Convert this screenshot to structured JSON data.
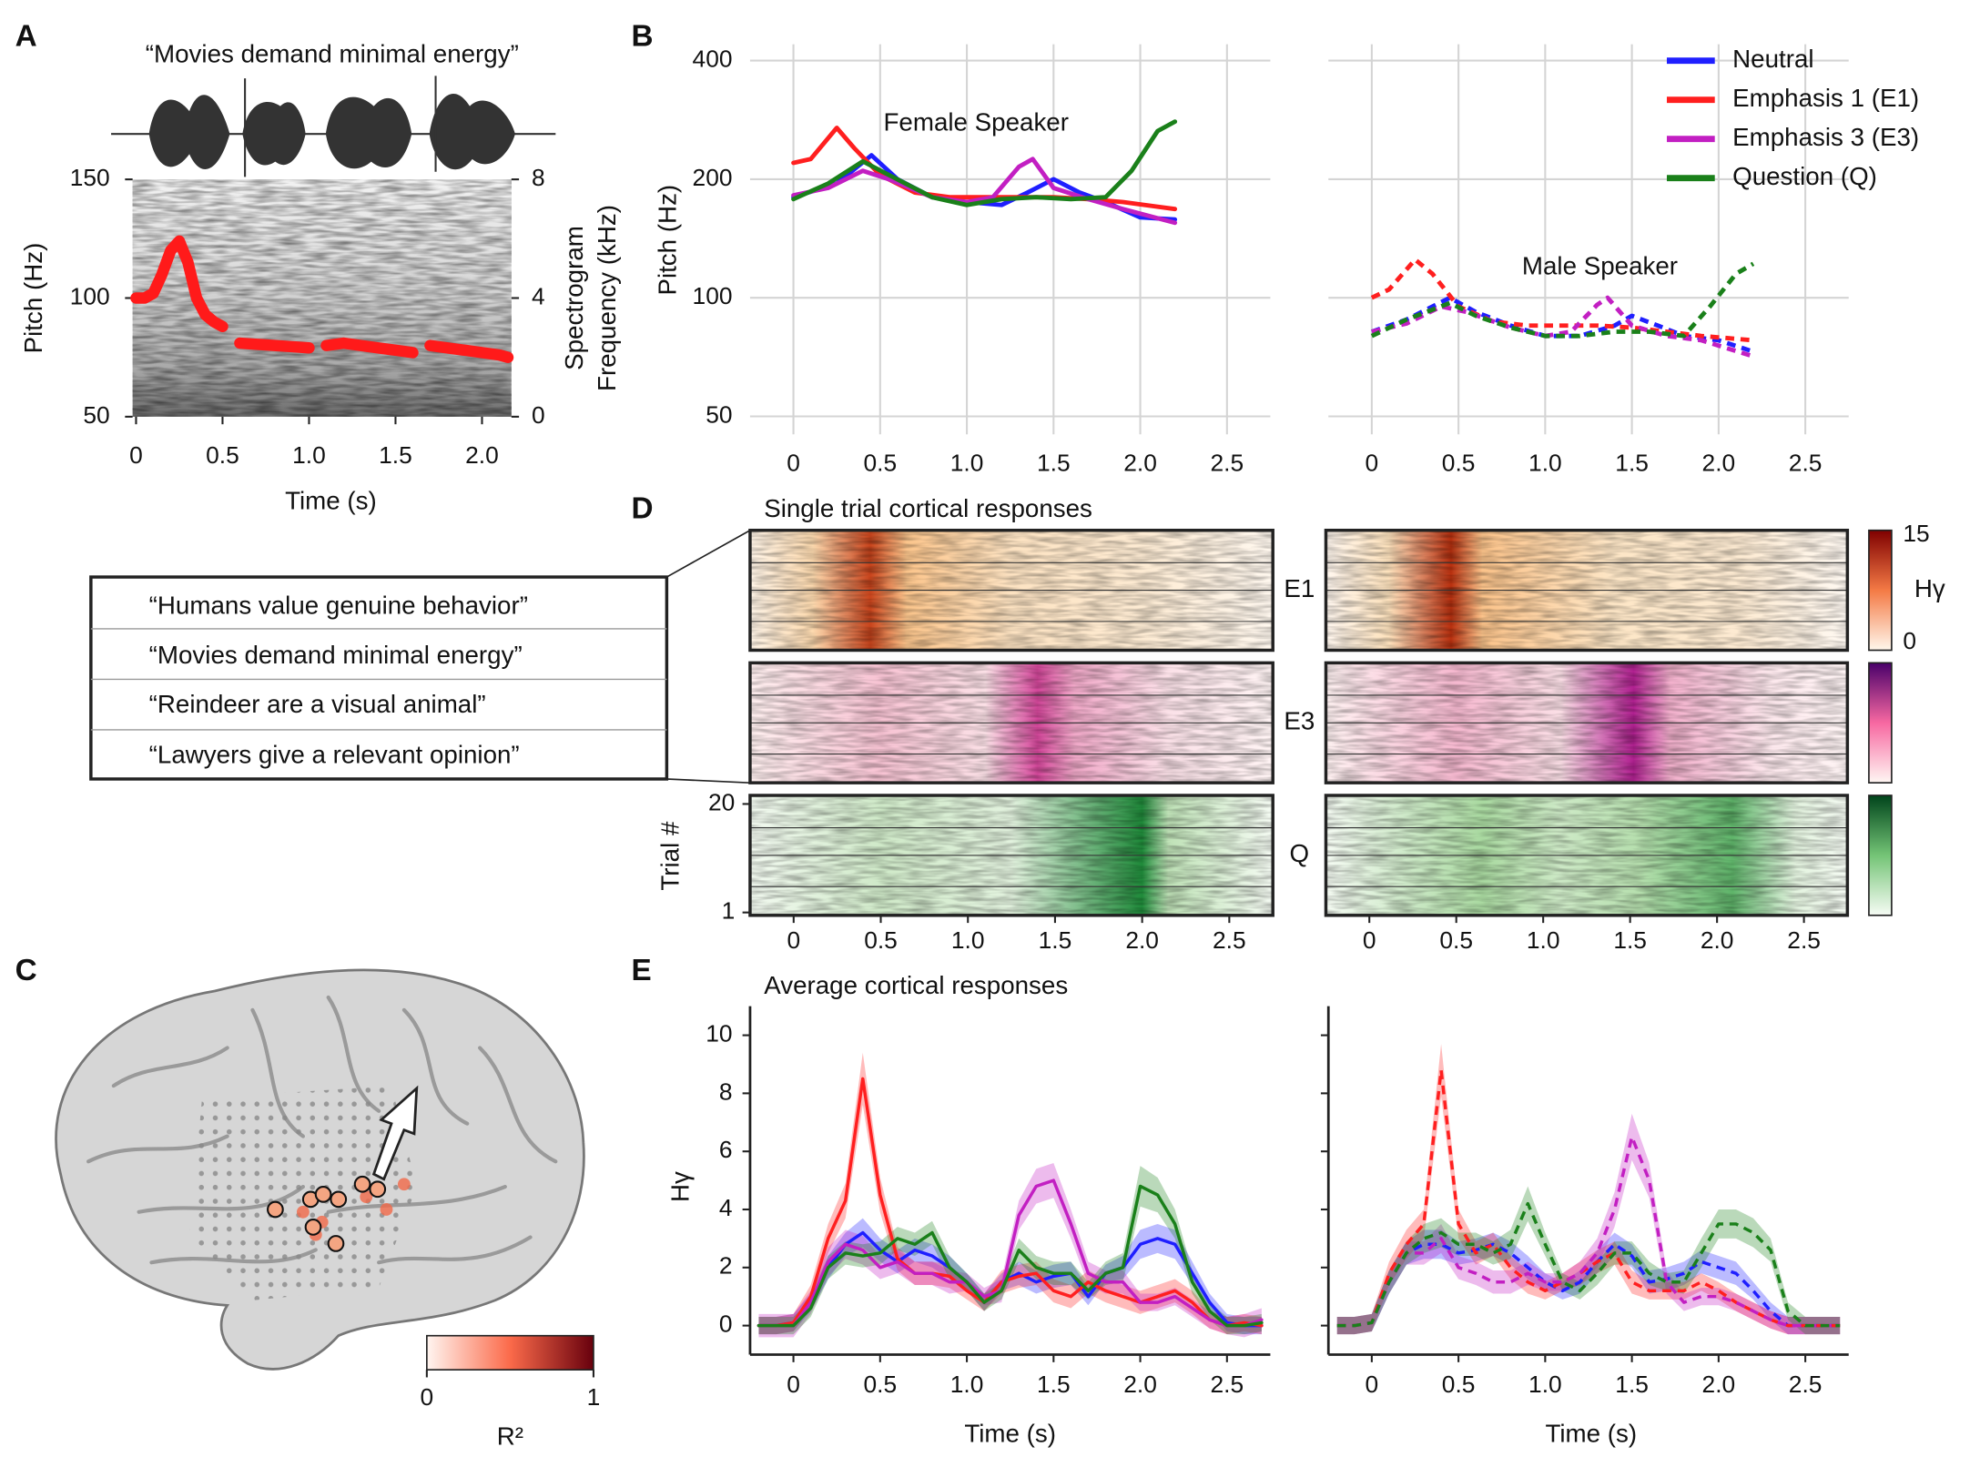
{
  "panel_labels": [
    "A",
    "B",
    "C",
    "D",
    "E"
  ],
  "sentence_table": [
    "“Humans value genuine behavior”",
    "“Movies demand minimal energy”",
    "“Reindeer are a visual animal”",
    "“Lawyers give a relevant opinion”"
  ],
  "chart_data": [
    {
      "type": "line",
      "title": "“Movies demand minimal energy”",
      "x_label": "Time (s)",
      "y_label": "Pitch (Hz)",
      "y2_label": [
        "Spectrogram",
        "Frequency (kHz)"
      ],
      "xlim": [
        -0.02,
        2.17
      ],
      "xticks": [
        0,
        0.5,
        {
          "value": 1,
          "label": "1.0"
        },
        1.5,
        {
          "value": 2,
          "label": "2.0"
        }
      ],
      "ylim": [
        50,
        150
      ],
      "yticks": [
        50,
        100,
        150
      ],
      "y2lim": [
        0,
        8
      ],
      "y2ticks": [
        0,
        4,
        8
      ],
      "series": [
        {
          "color": "#ff1a1a",
          "x": [
            0,
            0.05,
            0.1,
            0.15,
            0.2,
            0.25,
            0.3,
            0.35,
            0.4,
            0.45,
            0.5,
            0.55,
            0.6,
            0.7,
            0.8,
            0.9,
            1.0,
            1.05,
            1.1,
            1.2,
            1.3,
            1.4,
            1.5,
            1.6,
            1.65,
            1.7,
            1.8,
            1.9,
            2.0,
            2.1,
            2.15
          ],
          "values": [
            100,
            100,
            102,
            110,
            120,
            124,
            115,
            100,
            93,
            90,
            88,
            null,
            81,
            80.5,
            80,
            79.5,
            79,
            null,
            80,
            81,
            80,
            79,
            78,
            77,
            null,
            80,
            79,
            78,
            77,
            76,
            75
          ]
        }
      ]
    },
    {
      "type": "line",
      "y_label": "Pitch (Hz)",
      "annotation": "Female Speaker",
      "log_y": true,
      "grid": true,
      "xlim": [
        -0.25,
        2.75
      ],
      "xticks": [
        0,
        0.5,
        {
          "value": 1,
          "label": "1.0"
        },
        1.5,
        {
          "value": 2,
          "label": "2.0"
        },
        2.5
      ],
      "ylim": [
        45,
        440
      ],
      "yticks": [
        50,
        100,
        200,
        400
      ],
      "series": [
        {
          "color": "#1f1fff",
          "x": [
            0,
            0.25,
            0.45,
            0.6,
            0.8,
            1.0,
            1.2,
            1.35,
            1.5,
            1.65,
            1.8,
            2.0,
            2.2
          ],
          "values": [
            180,
            195,
            230,
            200,
            180,
            175,
            172,
            185,
            200,
            185,
            175,
            160,
            158
          ]
        },
        {
          "color": "#ff1f1f",
          "x": [
            0,
            0.1,
            0.25,
            0.35,
            0.5,
            0.7,
            0.9,
            1.1,
            1.3,
            1.5,
            1.7,
            1.9,
            2.2
          ],
          "values": [
            220,
            225,
            270,
            240,
            205,
            185,
            180,
            180,
            180,
            180,
            178,
            175,
            168
          ]
        },
        {
          "color": "#c21fc2",
          "x": [
            0,
            0.2,
            0.4,
            0.55,
            0.8,
            1.0,
            1.15,
            1.3,
            1.38,
            1.5,
            1.7,
            1.9,
            2.2
          ],
          "values": [
            182,
            190,
            210,
            200,
            180,
            175,
            180,
            215,
            225,
            190,
            178,
            168,
            155
          ]
        },
        {
          "color": "#1a801a",
          "x": [
            0,
            0.2,
            0.4,
            0.55,
            0.8,
            1.0,
            1.2,
            1.4,
            1.6,
            1.8,
            1.95,
            2.1,
            2.2
          ],
          "values": [
            178,
            195,
            222,
            205,
            180,
            172,
            178,
            180,
            178,
            180,
            210,
            265,
            280
          ]
        }
      ]
    },
    {
      "type": "line",
      "annotation": "Male Speaker",
      "log_y": true,
      "grid": true,
      "dashed": true,
      "legend": "upper right",
      "show_ytick_labels": false,
      "xlim": [
        -0.25,
        2.75
      ],
      "xticks": [
        0,
        0.5,
        {
          "value": 1,
          "label": "1.0"
        },
        1.5,
        {
          "value": 2,
          "label": "2.0"
        },
        2.5
      ],
      "ylim": [
        45,
        440
      ],
      "yticks": [
        50,
        100,
        200,
        400
      ],
      "series": [
        {
          "name": "Neutral",
          "color": "#1f1fff",
          "x": [
            0,
            0.2,
            0.45,
            0.6,
            0.8,
            1.0,
            1.2,
            1.4,
            1.5,
            1.65,
            1.8,
            2.0,
            2.2
          ],
          "values": [
            82,
            88,
            100,
            92,
            85,
            80,
            80,
            85,
            90,
            85,
            80,
            78,
            73
          ]
        },
        {
          "name": "Emphasis 1 (E1)",
          "color": "#ff1f1f",
          "x": [
            0,
            0.1,
            0.25,
            0.35,
            0.5,
            0.7,
            0.9,
            1.1,
            1.3,
            1.5,
            1.7,
            1.9,
            2.2
          ],
          "values": [
            100,
            105,
            125,
            115,
            95,
            87,
            85,
            85,
            85,
            84,
            82,
            80,
            78
          ]
        },
        {
          "name": "Emphasis 3 (E3)",
          "color": "#c21fc2",
          "x": [
            0,
            0.2,
            0.4,
            0.55,
            0.8,
            1.0,
            1.15,
            1.3,
            1.36,
            1.5,
            1.7,
            1.9,
            2.2
          ],
          "values": [
            82,
            86,
            95,
            92,
            84,
            80,
            82,
            96,
            100,
            85,
            80,
            78,
            71
          ]
        },
        {
          "name": "Question (Q)",
          "color": "#1a801a",
          "x": [
            0,
            0.2,
            0.45,
            0.6,
            0.8,
            1.0,
            1.2,
            1.4,
            1.6,
            1.8,
            1.95,
            2.1,
            2.2
          ],
          "values": [
            80,
            88,
            97,
            90,
            84,
            80,
            80,
            82,
            82,
            80,
            95,
            115,
            122
          ]
        }
      ]
    },
    {
      "type": "heatmap",
      "title": "Single trial cortical responses",
      "rows": [
        "E1",
        "E3",
        "Q"
      ],
      "y_label": "Trial #",
      "ylim": [
        0.5,
        21.5
      ],
      "yticks": [
        1,
        20
      ],
      "xlim": [
        -0.25,
        2.75
      ],
      "xticks": [
        0,
        0.5,
        {
          "value": 1,
          "label": "1.0"
        },
        1.5,
        {
          "value": 2,
          "label": "2.0"
        },
        2.5
      ],
      "colorbar": {
        "label": "Hγ",
        "lim": [
          0,
          15
        ],
        "ticks": [
          0,
          15
        ]
      }
    },
    {
      "type": "colorbar",
      "label": "R²",
      "lim": [
        0,
        1
      ],
      "ticks": [
        0,
        1
      ]
    },
    {
      "type": "line",
      "title": "Average cortical responses",
      "x_label": "Time (s)",
      "y_label": "Hγ",
      "xlim": [
        -0.25,
        2.75
      ],
      "xticks": [
        0,
        0.5,
        {
          "value": 1,
          "label": "1.0"
        },
        1.5,
        {
          "value": 2,
          "label": "2.0"
        },
        2.5
      ],
      "ylim": [
        -1,
        11
      ],
      "yticks": [
        0,
        2,
        4,
        6,
        8,
        10
      ],
      "x": [
        -0.2,
        -0.1,
        0,
        0.1,
        0.2,
        0.3,
        0.4,
        0.5,
        0.6,
        0.7,
        0.8,
        0.9,
        1,
        1.1,
        1.2,
        1.3,
        1.4,
        1.5,
        1.6,
        1.7,
        1.8,
        1.9,
        2,
        2.1,
        2.2,
        2.3,
        2.4,
        2.5,
        2.6,
        2.7
      ],
      "series": [
        {
          "color": "#1f1fff",
          "values": [
            0,
            0,
            0.1,
            0.8,
            2.0,
            2.8,
            3.2,
            2.6,
            2.2,
            2.6,
            2.4,
            2.0,
            1.5,
            0.8,
            1.5,
            1.8,
            1.5,
            1.7,
            1.8,
            1.0,
            1.8,
            2.0,
            2.8,
            3.0,
            2.8,
            1.8,
            0.8,
            0.1,
            0,
            0
          ],
          "errors": [
            0.3,
            0.3,
            0.3,
            0.3,
            0.4,
            0.4,
            0.5,
            0.4,
            0.4,
            0.4,
            0.4,
            0.4,
            0.3,
            0.3,
            0.3,
            0.4,
            0.4,
            0.4,
            0.4,
            0.3,
            0.3,
            0.4,
            0.5,
            0.5,
            0.5,
            0.4,
            0.3,
            0.3,
            0.3,
            0.3
          ]
        },
        {
          "color": "#ff1f1f",
          "values": [
            0,
            0,
            0.1,
            1.0,
            3.0,
            4.3,
            8.5,
            4.5,
            2.3,
            1.8,
            1.8,
            1.7,
            1.2,
            0.8,
            1.5,
            1.7,
            1.8,
            1.2,
            1.0,
            1.5,
            1.2,
            1.0,
            0.8,
            1.0,
            1.2,
            0.8,
            0.2,
            0,
            0.1,
            0
          ],
          "errors": [
            0.3,
            0.3,
            0.3,
            0.4,
            0.5,
            0.6,
            0.9,
            0.6,
            0.4,
            0.4,
            0.4,
            0.4,
            0.3,
            0.3,
            0.4,
            0.4,
            0.4,
            0.4,
            0.4,
            0.4,
            0.4,
            0.4,
            0.4,
            0.4,
            0.4,
            0.4,
            0.3,
            0.3,
            0.3,
            0.3
          ]
        },
        {
          "color": "#c21fc2",
          "values": [
            0,
            0,
            0,
            0.8,
            2.2,
            2.8,
            2.6,
            2.0,
            2.2,
            1.8,
            1.8,
            1.5,
            1.5,
            1.0,
            1.2,
            3.8,
            4.8,
            5.0,
            3.5,
            1.8,
            1.5,
            1.5,
            0.8,
            0.8,
            1.0,
            0.6,
            0.2,
            0,
            0,
            0.2
          ],
          "errors": [
            0.4,
            0.4,
            0.4,
            0.4,
            0.5,
            0.5,
            0.5,
            0.4,
            0.4,
            0.4,
            0.4,
            0.4,
            0.3,
            0.3,
            0.4,
            0.5,
            0.6,
            0.6,
            0.5,
            0.4,
            0.4,
            0.4,
            0.3,
            0.3,
            0.3,
            0.3,
            0.3,
            0.3,
            0.4,
            0.4
          ]
        },
        {
          "color": "#1a801a",
          "values": [
            0,
            0,
            0,
            0.6,
            2.0,
            2.5,
            2.4,
            2.5,
            3.0,
            2.8,
            3.2,
            2.0,
            1.5,
            0.8,
            1.2,
            2.6,
            2.0,
            1.8,
            1.8,
            1.2,
            1.8,
            2.0,
            4.8,
            4.5,
            3.5,
            1.5,
            0.5,
            0,
            0,
            0.1
          ],
          "errors": [
            0.3,
            0.3,
            0.3,
            0.3,
            0.4,
            0.4,
            0.4,
            0.4,
            0.4,
            0.4,
            0.4,
            0.4,
            0.3,
            0.3,
            0.3,
            0.4,
            0.4,
            0.4,
            0.4,
            0.3,
            0.4,
            0.5,
            0.7,
            0.6,
            0.5,
            0.4,
            0.3,
            0.3,
            0.3,
            0.3
          ]
        }
      ]
    },
    {
      "type": "line",
      "x_label": "Time (s)",
      "dashed": true,
      "show_ytick_labels": false,
      "xlim": [
        -0.25,
        2.75
      ],
      "xticks": [
        0,
        0.5,
        {
          "value": 1,
          "label": "1.0"
        },
        1.5,
        {
          "value": 2,
          "label": "2.0"
        },
        2.5
      ],
      "ylim": [
        -1,
        11
      ],
      "yticks": [
        0,
        2,
        4,
        6,
        8,
        10
      ],
      "x": [
        -0.2,
        -0.1,
        0,
        0.1,
        0.2,
        0.3,
        0.4,
        0.5,
        0.6,
        0.7,
        0.8,
        0.9,
        1,
        1.1,
        1.2,
        1.3,
        1.4,
        1.5,
        1.6,
        1.7,
        1.8,
        1.9,
        2,
        2.1,
        2.2,
        2.3,
        2.4,
        2.5,
        2.6,
        2.7
      ],
      "series": [
        {
          "color": "#1f1fff",
          "values": [
            0,
            0,
            0.1,
            1.5,
            2.5,
            2.8,
            2.8,
            2.5,
            2.6,
            2.8,
            2.5,
            2.0,
            1.5,
            1.2,
            1.5,
            2.2,
            2.8,
            2.4,
            1.5,
            1.6,
            1.8,
            2.2,
            2.0,
            1.8,
            1.2,
            0.5,
            0,
            0,
            0,
            0
          ],
          "errors": [
            0.3,
            0.3,
            0.3,
            0.4,
            0.4,
            0.5,
            0.5,
            0.4,
            0.4,
            0.4,
            0.4,
            0.4,
            0.3,
            0.3,
            0.4,
            0.4,
            0.4,
            0.4,
            0.4,
            0.4,
            0.4,
            0.4,
            0.4,
            0.4,
            0.3,
            0.3,
            0.3,
            0.3,
            0.3,
            0.3
          ]
        },
        {
          "color": "#ff1f1f",
          "values": [
            0,
            0,
            0.1,
            1.8,
            2.8,
            3.5,
            8.8,
            3.5,
            2.5,
            2.8,
            2.0,
            1.5,
            1.2,
            1.5,
            1.8,
            2.2,
            2.5,
            1.5,
            1.2,
            1.2,
            1.2,
            1.5,
            1.2,
            0.8,
            0.5,
            0.2,
            0,
            0,
            0,
            0
          ],
          "errors": [
            0.3,
            0.3,
            0.3,
            0.4,
            0.5,
            0.5,
            0.9,
            0.5,
            0.4,
            0.4,
            0.4,
            0.4,
            0.3,
            0.3,
            0.4,
            0.4,
            0.4,
            0.4,
            0.3,
            0.3,
            0.3,
            0.3,
            0.3,
            0.3,
            0.3,
            0.3,
            0.3,
            0.3,
            0.3,
            0.3
          ]
        },
        {
          "color": "#c21fc2",
          "values": [
            0,
            0,
            0.1,
            1.5,
            2.5,
            2.5,
            3.0,
            2.0,
            1.8,
            1.5,
            1.5,
            1.8,
            1.5,
            1.5,
            1.8,
            2.5,
            4.0,
            6.5,
            5.0,
            1.5,
            0.8,
            1.0,
            1.0,
            0.8,
            0.5,
            0.2,
            0,
            0,
            0,
            0
          ],
          "errors": [
            0.3,
            0.3,
            0.3,
            0.4,
            0.4,
            0.4,
            0.5,
            0.4,
            0.4,
            0.4,
            0.4,
            0.4,
            0.3,
            0.3,
            0.4,
            0.5,
            0.6,
            0.8,
            0.6,
            0.4,
            0.3,
            0.3,
            0.3,
            0.3,
            0.3,
            0.3,
            0.3,
            0.3,
            0.3,
            0.3
          ]
        },
        {
          "color": "#1a801a",
          "values": [
            0,
            0,
            0.1,
            1.5,
            2.5,
            3.0,
            3.2,
            2.8,
            2.8,
            2.5,
            2.8,
            4.2,
            2.8,
            1.5,
            1.2,
            1.8,
            2.5,
            2.5,
            1.8,
            1.5,
            1.5,
            2.5,
            3.5,
            3.5,
            3.2,
            2.6,
            0.5,
            0,
            0,
            0
          ],
          "errors": [
            0.3,
            0.3,
            0.3,
            0.4,
            0.4,
            0.5,
            0.5,
            0.4,
            0.4,
            0.4,
            0.5,
            0.6,
            0.4,
            0.3,
            0.3,
            0.4,
            0.4,
            0.4,
            0.4,
            0.3,
            0.4,
            0.5,
            0.5,
            0.5,
            0.5,
            0.4,
            0.3,
            0.3,
            0.3,
            0.3
          ]
        }
      ]
    }
  ]
}
